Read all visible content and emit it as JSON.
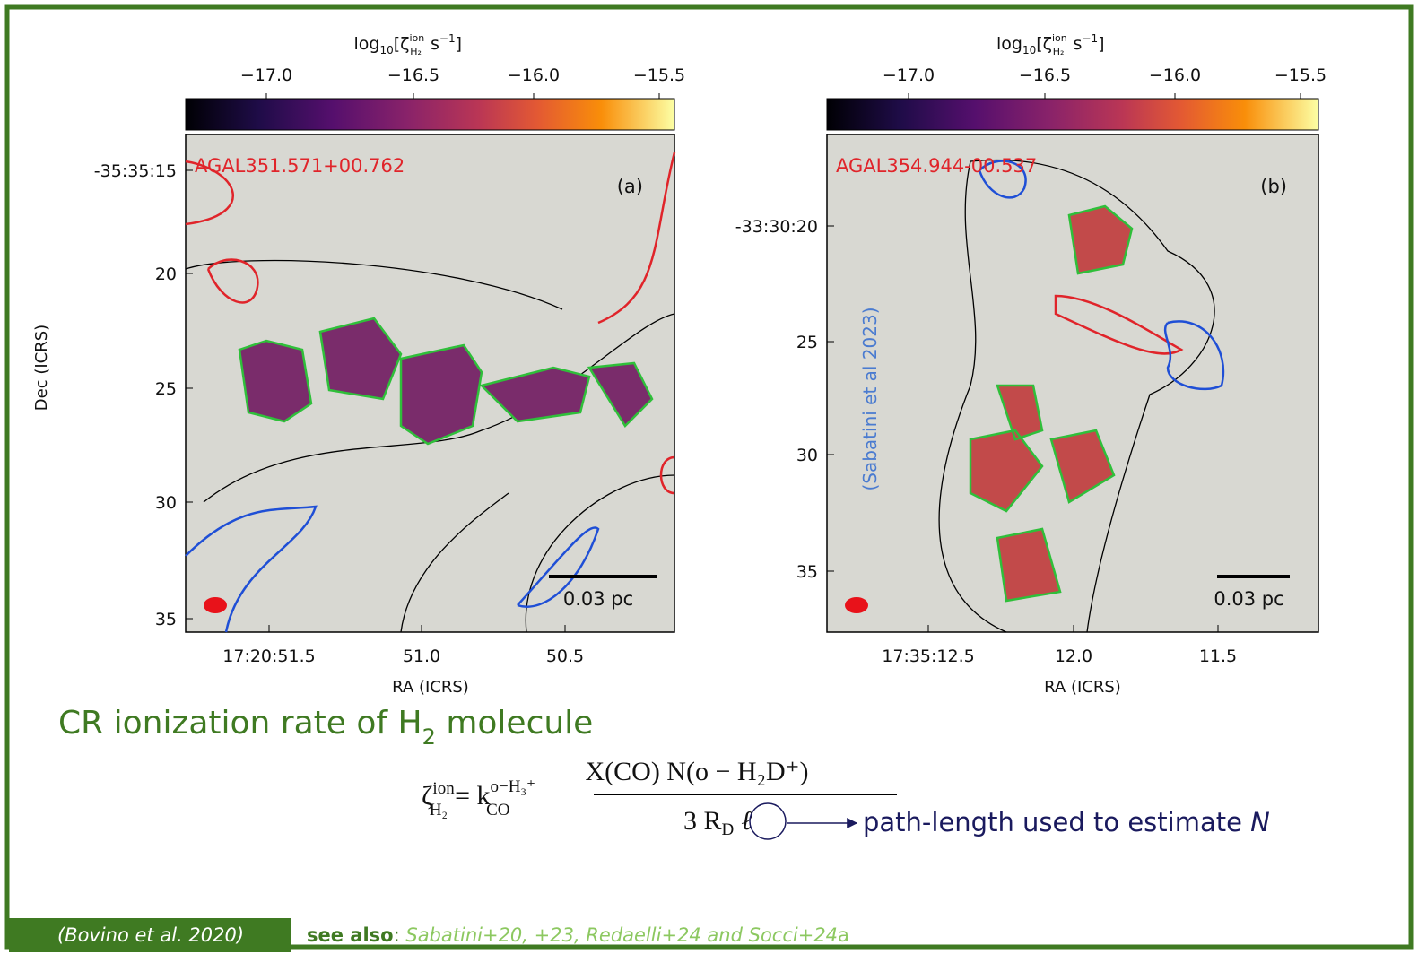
{
  "panels": [
    {
      "colorbar": {
        "label_parts": [
          "log",
          "10",
          "[ζ",
          "ion",
          "H₂",
          " s",
          "−1",
          "]"
        ],
        "ticks": [
          "−17.0",
          "−16.5",
          "−16.0",
          "−15.5"
        ]
      },
      "source": "AGAL351.571+00.762",
      "panel_label": "(a)",
      "scale_bar": "0.03 pc",
      "y_ticks": [
        "-35:35:15",
        "20",
        "25",
        "30",
        "35"
      ],
      "x_ticks": [
        "17:20:51.5",
        "51.0",
        "50.5"
      ],
      "x_label": "RA (ICRS)",
      "y_label": "Dec (ICRS)"
    },
    {
      "colorbar": {
        "label_parts": [
          "log",
          "10",
          "[ζ",
          "ion",
          "H₂",
          " s",
          "−1",
          "]"
        ],
        "ticks": [
          "−17.0",
          "−16.5",
          "−16.0",
          "−15.5"
        ]
      },
      "source": "AGAL354.944-00.537",
      "panel_label": "(b)",
      "scale_bar": "0.03 pc",
      "y_ticks": [
        "-33:30:20",
        "25",
        "30",
        "35"
      ],
      "x_ticks": [
        "17:35:12.5",
        "12.0",
        "11.5"
      ],
      "x_label": "RA (ICRS)",
      "credit": "(Sabatini et al 2023)"
    }
  ],
  "title": {
    "before": "CR ionization rate of H",
    "subscript": "2",
    "after": " molecule"
  },
  "formula": {
    "lhs": "ζ",
    "lhs_sup": "ion",
    "lhs_sub": "H₂",
    "equals_k": "= k",
    "k_sup": "o−H₃⁺",
    "k_sub": "CO",
    "numerator": "X(CO) N(o − H₂D⁺)",
    "denominator": "3 R",
    "denominator_sub": "D",
    "path_length": "ℓ"
  },
  "annotation": {
    "text": "path-length used to estimate ",
    "variable": "N"
  },
  "footer": {
    "citation": "(Bovino et al. 2020)",
    "see_also_label": "see also",
    "colon": ": ",
    "references": "Sabatini+20, +23, Redaelli+24 and Socci+24",
    "tail": "a"
  }
}
